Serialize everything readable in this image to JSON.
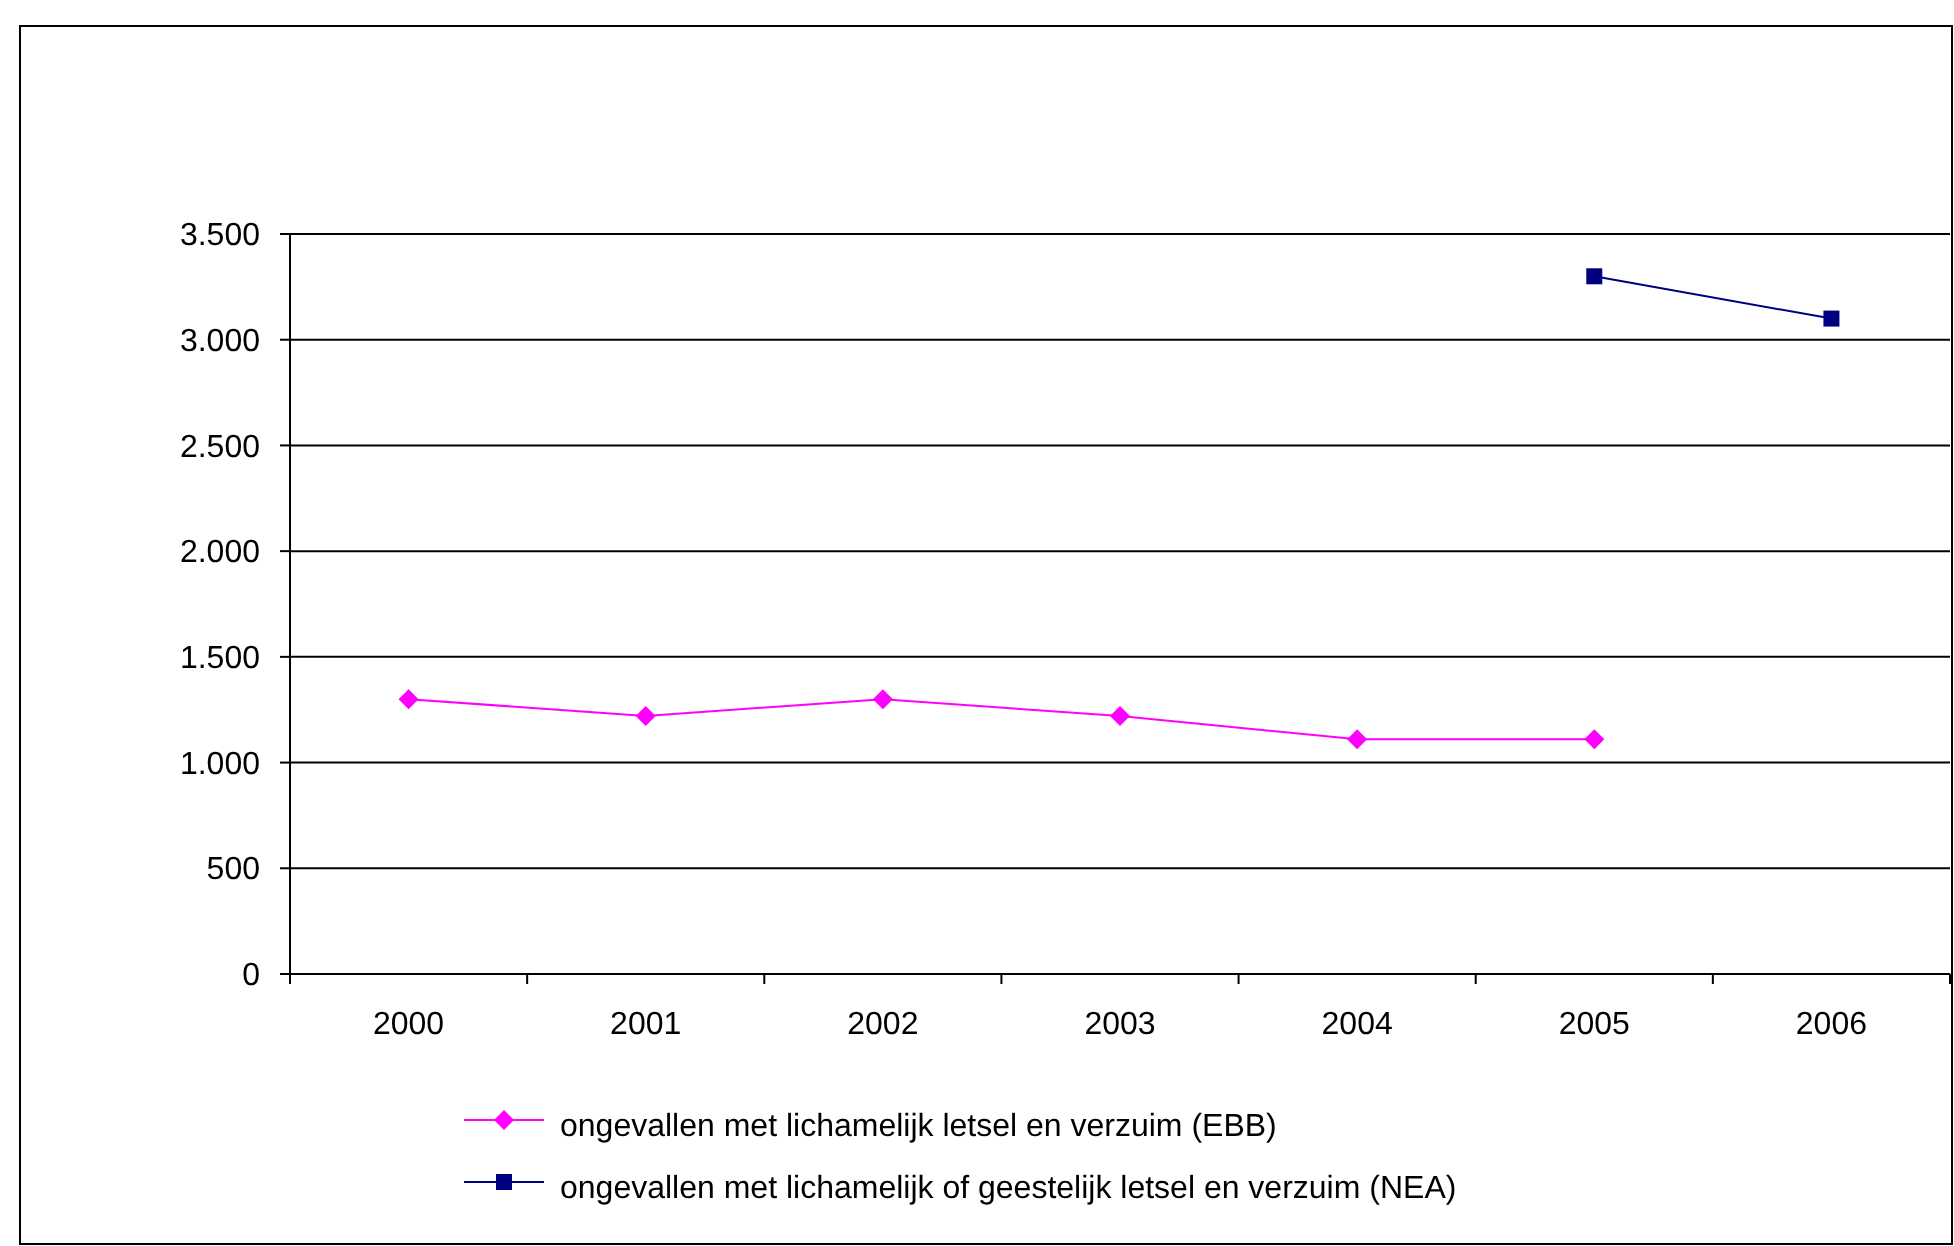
{
  "chart_data": {
    "type": "line",
    "categories": [
      "2000",
      "2001",
      "2002",
      "2003",
      "2004",
      "2005",
      "2006"
    ],
    "series": [
      {
        "name": "ongevallen met lichamelijk letsel en verzuim (EBB)",
        "color": "#ff00ff",
        "marker": "diamond",
        "values": [
          1300,
          1220,
          1300,
          1220,
          1110,
          1110,
          null
        ]
      },
      {
        "name": "ongevallen met lichamelijk of geestelijk letsel en verzuim (NEA)",
        "color": "#000080",
        "marker": "square",
        "values": [
          null,
          null,
          null,
          null,
          null,
          3300,
          3100
        ]
      }
    ],
    "ylim": [
      0,
      3500
    ],
    "yticks": [
      0,
      500,
      {
        "value": 1000,
        "label": "1.000"
      },
      {
        "value": 1500,
        "label": "1.500"
      },
      {
        "value": 2000,
        "label": "2.000"
      },
      {
        "value": 2500,
        "label": "2.500"
      },
      {
        "value": 3000,
        "label": "3.000"
      },
      {
        "value": 3500,
        "label": "3.500"
      }
    ],
    "grid": "y",
    "legend": "bottom"
  }
}
